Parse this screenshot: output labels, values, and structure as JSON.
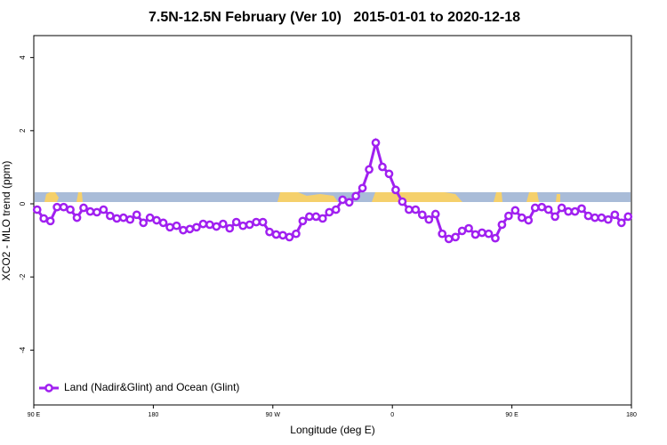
{
  "chart_data": {
    "type": "line",
    "title": "7.5N-12.5N February (Ver 10)   2015-01-01 to 2020-12-18",
    "xlabel": "Longitude (deg E)",
    "ylabel": "XCO2 - MLO trend (ppm)",
    "xlim": [
      90,
      540
    ],
    "ylim": [
      -5.5,
      4.6
    ],
    "xticks": [
      {
        "value": 90,
        "label": "90 E"
      },
      180,
      {
        "value": 270,
        "label": "90 W"
      },
      {
        "value": 360,
        "label": "0"
      },
      {
        "value": 450,
        "label": "90 E"
      },
      {
        "value": 540,
        "label": "180"
      }
    ],
    "yticks": [
      -4,
      -2,
      0,
      2,
      4
    ],
    "legend": "bottom-left",
    "x": [
      92.5,
      97.5,
      102.5,
      107.5,
      112.5,
      117.5,
      122.5,
      127.5,
      132.5,
      137.5,
      142.5,
      147.5,
      152.5,
      157.5,
      162.5,
      167.5,
      172.5,
      177.5,
      182.5,
      187.5,
      192.5,
      197.5,
      202.5,
      207.5,
      212.5,
      217.5,
      222.5,
      227.5,
      232.5,
      237.5,
      242.5,
      247.5,
      252.5,
      257.5,
      262.5,
      267.5,
      272.5,
      277.5,
      282.5,
      287.5,
      292.5,
      297.5,
      302.5,
      307.5,
      312.5,
      317.5,
      322.5,
      327.5,
      332.5,
      337.5,
      342.5,
      347.5,
      352.5,
      357.5,
      362.5,
      367.5,
      372.5,
      377.5,
      382.5,
      387.5,
      392.5,
      397.5,
      402.5,
      407.5,
      412.5,
      417.5,
      422.5,
      427.5,
      432.5,
      437.5,
      442.5,
      447.5,
      452.5,
      457.5,
      462.5,
      467.5,
      472.5,
      477.5,
      482.5,
      487.5,
      492.5,
      497.5,
      502.5,
      507.5,
      512.5,
      517.5,
      522.5,
      527.5,
      532.5,
      537.5
    ],
    "series": [
      {
        "name": "Land (Nadir&Glint) and Ocean (Glint)",
        "color": "#a020f0",
        "values": [
          -0.16,
          -0.4,
          -0.47,
          -0.09,
          -0.09,
          -0.16,
          -0.38,
          -0.11,
          -0.21,
          -0.23,
          -0.16,
          -0.33,
          -0.4,
          -0.38,
          -0.43,
          -0.3,
          -0.52,
          -0.38,
          -0.45,
          -0.52,
          -0.64,
          -0.6,
          -0.72,
          -0.69,
          -0.64,
          -0.55,
          -0.57,
          -0.62,
          -0.55,
          -0.67,
          -0.5,
          -0.6,
          -0.57,
          -0.5,
          -0.5,
          -0.77,
          -0.84,
          -0.86,
          -0.91,
          -0.82,
          -0.47,
          -0.35,
          -0.35,
          -0.4,
          -0.23,
          -0.16,
          0.11,
          0.04,
          0.21,
          0.43,
          0.94,
          1.67,
          1.01,
          0.82,
          0.38,
          0.06,
          -0.16,
          -0.16,
          -0.3,
          -0.43,
          -0.28,
          -0.82,
          -0.96,
          -0.91,
          -0.74,
          -0.67,
          -0.84,
          -0.79,
          -0.82,
          -0.94,
          -0.57,
          -0.33,
          -0.18,
          -0.38,
          -0.45,
          -0.11,
          -0.09,
          -0.16,
          -0.35,
          -0.11,
          -0.21,
          -0.21,
          -0.13,
          -0.33,
          -0.38,
          -0.38,
          -0.43,
          -0.3,
          -0.52,
          -0.35
        ]
      }
    ]
  }
}
